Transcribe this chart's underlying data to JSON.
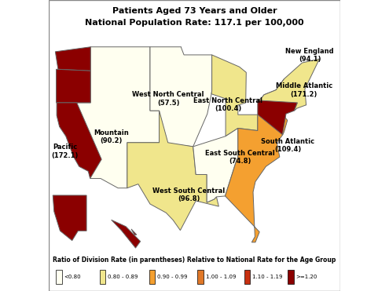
{
  "title_line1": "Patients Aged 73 Years and Older",
  "title_line2": "National Population Rate: 117.1 per 100,000",
  "ratios": {
    "Pacific": 1.47,
    "Mountain": 0.771,
    "West North Central": 0.491,
    "East North Central": 0.858,
    "New England": 0.804,
    "Middle Atlantic": 1.462,
    "South Atlantic": 0.935,
    "East South Central": 0.639,
    "West South Central": 0.827
  },
  "values": {
    "Pacific": "172.1",
    "Mountain": "90.2",
    "West North Central": "57.5",
    "East North Central": "100.4",
    "New England": "94.1",
    "Middle Atlantic": "171.2",
    "South Atlantic": "109.4",
    "East South Central": "74.8",
    "West South Central": "96.8"
  },
  "color_lt080": "#FFFFF0",
  "color_080_089": "#F0E68C",
  "color_090_099": "#F4A030",
  "color_100_109": "#E07828",
  "color_110_119": "#C83010",
  "color_ge120": "#8B0000",
  "legend_title": "Ratio of Division Rate (in parentheses) Relative to National Rate for the Age Group",
  "legend_items": [
    {
      "label": "<0.80",
      "color": "#FFFFF0"
    },
    {
      "label": "0.80 - 0.89",
      "color": "#F0E68C"
    },
    {
      "label": "0.90 - 0.99",
      "color": "#F4A030"
    },
    {
      "label": "1.00 - 1.09",
      "color": "#E07828"
    },
    {
      "label": "1.10 - 1.19",
      "color": "#C83010"
    },
    {
      "label": ">=1.20",
      "color": "#8B0000"
    }
  ]
}
